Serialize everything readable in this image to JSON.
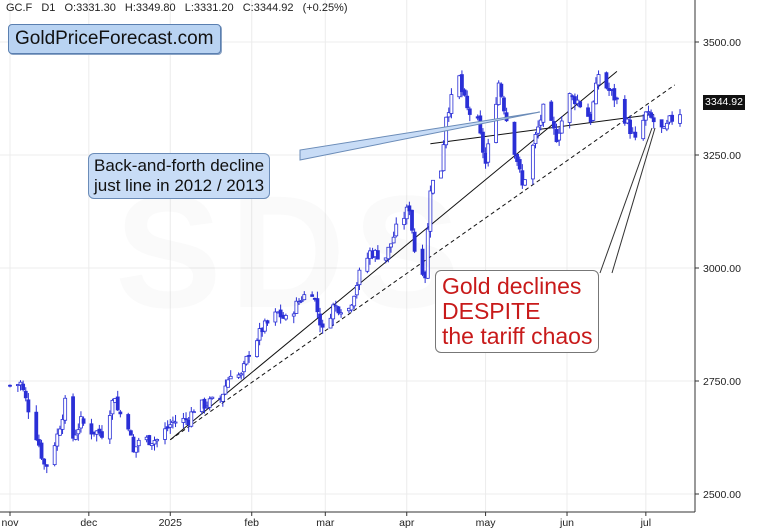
{
  "header": {
    "symbol": "GC.F",
    "interval": "D1",
    "open": "O:3331.30",
    "high": "H:3349.80",
    "low": "L:3331.20",
    "close": "C:3344.92",
    "change": "(+0.25%)"
  },
  "brand": "GoldPriceForecast.com",
  "last_price_label": "3344.92",
  "annotations": {
    "left_line1": "Back-and-forth decline",
    "left_line2": "just line in 2012 / 2013",
    "right_line1": "Gold declines",
    "right_line2": "DESPITE",
    "right_line3": "the tariff chaos"
  },
  "colors": {
    "up_candle": "#ffffff",
    "down_candle": "#2a2fd6",
    "candle_outline": "#2a2fd6",
    "price_tag": "#111111",
    "callout_blue": "#c8dcf6",
    "callout_red_text": "#c81a1a"
  },
  "chart_data": {
    "type": "candlestick",
    "ylim": [
      2480,
      3560
    ],
    "y_ticks": [
      "3500.00",
      "3250.00",
      "3000.00",
      "2750.00",
      "2500.00"
    ],
    "y_tick_values": [
      3500,
      3250,
      3000,
      2750,
      2500
    ],
    "x_tick_labels": [
      "nov",
      "dec",
      "2025",
      "feb",
      "mar",
      "apr",
      "may",
      "jun",
      "jul"
    ],
    "x_tick_dates": [
      "2024-11-01",
      "2024-12-01",
      "2025-01-01",
      "2025-02-01",
      "2025-03-01",
      "2025-04-01",
      "2025-05-01",
      "2025-06-01",
      "2025-07-01"
    ],
    "x_range": [
      "2024-11-01",
      "2025-07-14"
    ],
    "last_price": 3344.92,
    "price_path": [
      [
        "2024-11-01",
        2740
      ],
      [
        "2024-11-05",
        2745
      ],
      [
        "2024-11-08",
        2690
      ],
      [
        "2024-11-12",
        2610
      ],
      [
        "2024-11-14",
        2565
      ],
      [
        "2024-11-15",
        2565
      ],
      [
        "2024-11-19",
        2630
      ],
      [
        "2024-11-22",
        2700
      ],
      [
        "2024-11-25",
        2625
      ],
      [
        "2024-11-28",
        2660
      ],
      [
        "2024-12-02",
        2640
      ],
      [
        "2024-12-06",
        2635
      ],
      [
        "2024-12-11",
        2720
      ],
      [
        "2024-12-12",
        2685
      ],
      [
        "2024-12-16",
        2655
      ],
      [
        "2024-12-18",
        2590
      ],
      [
        "2024-12-20",
        2620
      ],
      [
        "2024-12-27",
        2620
      ],
      [
        "2025-01-02",
        2660
      ],
      [
        "2025-01-08",
        2665
      ],
      [
        "2025-01-10",
        2690
      ],
      [
        "2025-01-15",
        2700
      ],
      [
        "2025-01-20",
        2710
      ],
      [
        "2025-01-24",
        2770
      ],
      [
        "2025-01-28",
        2760
      ],
      [
        "2025-01-31",
        2815
      ],
      [
        "2025-02-05",
        2865
      ],
      [
        "2025-02-11",
        2900
      ],
      [
        "2025-02-14",
        2885
      ],
      [
        "2025-02-20",
        2935
      ],
      [
        "2025-02-24",
        2950
      ],
      [
        "2025-02-28",
        2860
      ],
      [
        "2025-03-04",
        2915
      ],
      [
        "2025-03-10",
        2910
      ],
      [
        "2025-03-14",
        2985
      ],
      [
        "2025-03-18",
        3035
      ],
      [
        "2025-03-24",
        3025
      ],
      [
        "2025-03-28",
        3085
      ],
      [
        "2025-04-02",
        3135
      ],
      [
        "2025-04-04",
        3040
      ],
      [
        "2025-04-08",
        2985
      ],
      [
        "2025-04-10",
        3180
      ],
      [
        "2025-04-14",
        3220
      ],
      [
        "2025-04-16",
        3340
      ],
      [
        "2025-04-21",
        3420
      ],
      [
        "2025-04-22",
        3390
      ],
      [
        "2025-04-24",
        3350
      ],
      [
        "2025-04-28",
        3320
      ],
      [
        "2025-05-01",
        3230
      ],
      [
        "2025-05-06",
        3410
      ],
      [
        "2025-05-09",
        3330
      ],
      [
        "2025-05-13",
        3240
      ],
      [
        "2025-05-15",
        3180
      ],
      [
        "2025-05-20",
        3290
      ],
      [
        "2025-05-23",
        3350
      ],
      [
        "2025-05-28",
        3290
      ],
      [
        "2025-06-02",
        3380
      ],
      [
        "2025-06-05",
        3370
      ],
      [
        "2025-06-10",
        3330
      ],
      [
        "2025-06-13",
        3430
      ],
      [
        "2025-06-16",
        3400
      ],
      [
        "2025-06-20",
        3370
      ],
      [
        "2025-06-24",
        3320
      ],
      [
        "2025-06-27",
        3280
      ],
      [
        "2025-07-01",
        3340
      ],
      [
        "2025-07-03",
        3330
      ],
      [
        "2025-07-08",
        3300
      ],
      [
        "2025-07-10",
        3325
      ],
      [
        "2025-07-14",
        3344.92
      ]
    ],
    "trendlines": [
      {
        "style": "solid",
        "from": [
          "2025-01-01",
          2620
        ],
        "to": [
          "2025-06-20",
          3435
        ]
      },
      {
        "style": "dashed",
        "from": [
          "2025-01-01",
          2620
        ],
        "to": [
          "2025-07-12",
          3405
        ]
      },
      {
        "style": "solid",
        "from": [
          "2025-04-10",
          3275
        ],
        "to": [
          "2025-07-04",
          3340
        ]
      }
    ]
  }
}
